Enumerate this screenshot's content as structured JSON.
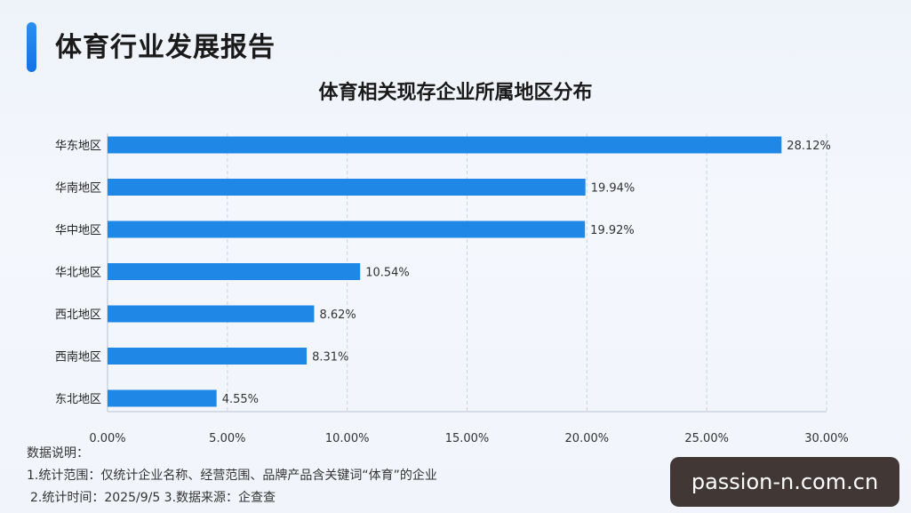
{
  "report_title": "体育行业发展报告",
  "chart_data": {
    "type": "bar",
    "orientation": "horizontal",
    "title": "体育相关现存企业所属地区分布",
    "categories": [
      "华东地区",
      "华南地区",
      "华中地区",
      "华北地区",
      "西北地区",
      "西南地区",
      "东北地区"
    ],
    "values": [
      28.12,
      19.94,
      19.92,
      10.54,
      8.62,
      8.31,
      4.55
    ],
    "value_labels": [
      "28.12%",
      "19.94%",
      "19.92%",
      "10.54%",
      "8.62%",
      "8.31%",
      "4.55%"
    ],
    "x_ticks": [
      0,
      5,
      10,
      15,
      20,
      25,
      30
    ],
    "x_tick_labels": [
      "0.00%",
      "5.00%",
      "10.00%",
      "15.00%",
      "20.00%",
      "25.00%",
      "30.00%"
    ],
    "xlim": [
      0,
      30
    ],
    "grid": "vertical-dashed",
    "bar_color": "#1f87e6"
  },
  "notes": {
    "heading": "数据说明：",
    "line1": "1.统计范围：仅统计企业名称、经营范围、品牌产品含关键词“体育”的企业",
    "line2": "2.统计时间：2025/9/5  3.数据来源：企查查"
  },
  "watermark": "passion-n.com.cn"
}
